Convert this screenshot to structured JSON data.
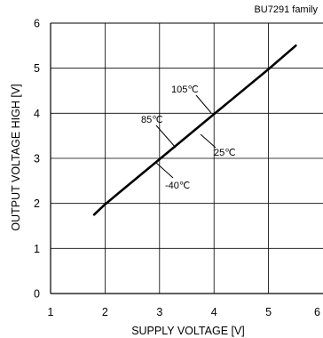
{
  "chart_data": {
    "type": "line",
    "title": "BU7291 family",
    "xlabel": "SUPPLY VOLTAGE [V]",
    "ylabel": "OUTPUT VOLTAGE HIGH [V]",
    "xlim": [
      1,
      6
    ],
    "ylim": [
      0,
      6
    ],
    "xticks": [
      "1",
      "2",
      "3",
      "4",
      "5",
      "6"
    ],
    "yticks": [
      "0",
      "1",
      "2",
      "3",
      "4",
      "5",
      "6"
    ],
    "grid": true,
    "series": [
      {
        "x": [
          1.8,
          2.0,
          3.0,
          4.0,
          5.0,
          5.5
        ],
        "y": [
          1.75,
          1.98,
          2.98,
          3.98,
          4.98,
          5.5
        ]
      }
    ],
    "annotations": [
      {
        "text": "105℃",
        "x": 4.0,
        "y": 4.05
      },
      {
        "text": "85℃",
        "x": 3.1,
        "y": 3.35
      },
      {
        "text": "25℃",
        "x": 3.85,
        "y": 3.65
      },
      {
        "text": "-40℃",
        "x": 3.0,
        "y": 2.85
      }
    ],
    "colors": {
      "line": "#000000",
      "grid": "#000000",
      "background": "#ffffff"
    }
  }
}
